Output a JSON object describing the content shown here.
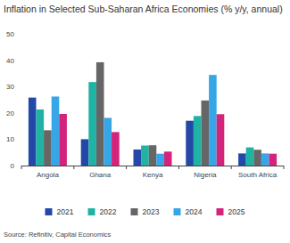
{
  "chart_data": {
    "type": "bar",
    "title": "Inflation in Selected Sub-Saharan Africa Economies (% y/y, annual)",
    "source": "Source: Refinitiv, Capital Economics",
    "categories": [
      "Angola",
      "Ghana",
      "Kenya",
      "Nigeria",
      "South Africa"
    ],
    "series": [
      {
        "name": "2021",
        "color": "#2348a8",
        "values": [
          25.8,
          10.0,
          6.1,
          17.0,
          4.6
        ]
      },
      {
        "name": "2022",
        "color": "#1fb3a3",
        "values": [
          21.3,
          31.7,
          7.6,
          18.8,
          6.9
        ]
      },
      {
        "name": "2023",
        "color": "#666666",
        "values": [
          13.4,
          39.2,
          7.7,
          24.7,
          6.0
        ]
      },
      {
        "name": "2024",
        "color": "#37a6e6",
        "values": [
          26.2,
          18.1,
          4.5,
          34.4,
          4.6
        ]
      },
      {
        "name": "2025",
        "color": "#d4237a",
        "values": [
          19.6,
          12.7,
          5.3,
          19.5,
          4.5
        ]
      }
    ],
    "ylim": [
      0,
      50
    ],
    "yticks": [
      0,
      10,
      20,
      30,
      40,
      50
    ],
    "grid": false,
    "legend": "bottom"
  }
}
